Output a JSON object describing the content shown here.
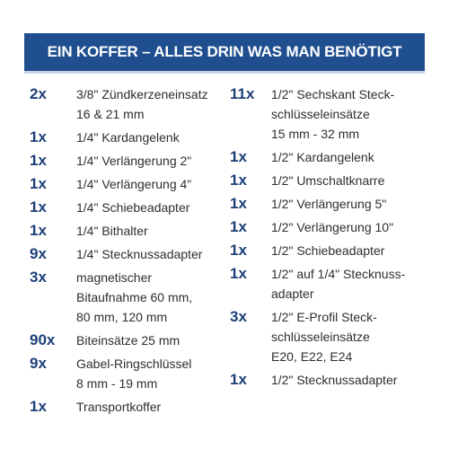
{
  "header": {
    "title": "EIN KOFFER – ALLES DRIN WAS MAN BENÖTIGT"
  },
  "columns": [
    {
      "items": [
        {
          "qty": "2x",
          "lines": [
            "3/8\" Zündkerzeneinsatz",
            "16 & 21 mm"
          ]
        },
        {
          "qty": "1x",
          "lines": [
            "1/4\" Kardangelenk"
          ]
        },
        {
          "qty": "1x",
          "lines": [
            "1/4\" Verlängerung 2\""
          ]
        },
        {
          "qty": "1x",
          "lines": [
            "1/4\" Verlängerung 4\""
          ]
        },
        {
          "qty": "1x",
          "lines": [
            "1/4\" Schiebeadapter"
          ]
        },
        {
          "qty": "1x",
          "lines": [
            "1/4\" Bithalter"
          ]
        },
        {
          "qty": "9x",
          "lines": [
            "1/4\" Stecknussadapter"
          ]
        },
        {
          "qty": "3x",
          "lines": [
            "magnetischer",
            "Bitaufnahme 60 mm,",
            "80 mm, 120 mm"
          ]
        },
        {
          "qty": "90x",
          "lines": [
            "Biteinsätze 25 mm"
          ]
        },
        {
          "qty": "9x",
          "lines": [
            "Gabel-Ringschlüssel",
            "8 mm - 19 mm"
          ]
        },
        {
          "qty": "1x",
          "lines": [
            "Transportkoffer"
          ]
        }
      ]
    },
    {
      "items": [
        {
          "qty": "11x",
          "lines": [
            "1/2\" Sechskant Steck-",
            "schlüsseleinsätze",
            "15 mm - 32 mm"
          ]
        },
        {
          "qty": "1x",
          "lines": [
            "1/2\" Kardangelenk"
          ]
        },
        {
          "qty": "1x",
          "lines": [
            "1/2\" Umschaltknarre"
          ]
        },
        {
          "qty": "1x",
          "lines": [
            "1/2\" Verlängerung 5\""
          ]
        },
        {
          "qty": "1x",
          "lines": [
            "1/2\" Verlängerung 10\""
          ]
        },
        {
          "qty": "1x",
          "lines": [
            "1/2\" Schiebeadapter"
          ]
        },
        {
          "qty": "1x",
          "lines": [
            "1/2\" auf 1/4\" Stecknuss-",
            "adapter"
          ]
        },
        {
          "qty": "3x",
          "lines": [
            "1/2\" E-Profil Steck-",
            "schlüsseleinsätze",
            "E20, E22, E24"
          ]
        },
        {
          "qty": "1x",
          "lines": [
            "1/2\" Stecknussadapter"
          ]
        }
      ]
    }
  ]
}
